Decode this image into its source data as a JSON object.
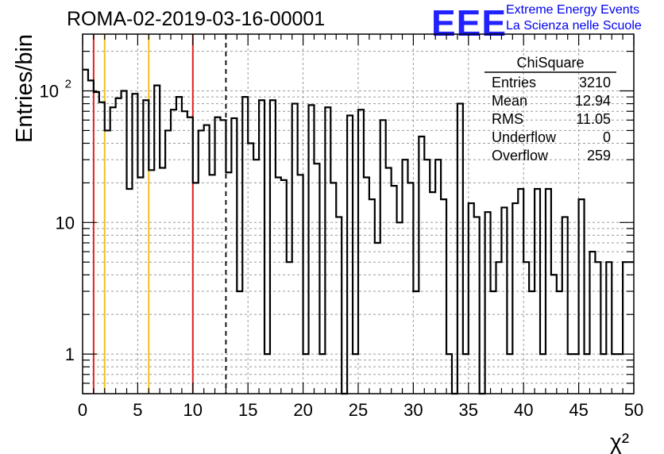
{
  "header": {
    "run_id": "ROMA-02-2019-03-16-00001",
    "logo": "EEE",
    "brand_line1": "Extreme Energy Events",
    "brand_line2": "La Scienza nelle Scuole"
  },
  "stats": {
    "title": "ChiSquare",
    "rows": [
      {
        "label": "Entries",
        "value": "3210"
      },
      {
        "label": "Mean",
        "value": "12.94"
      },
      {
        "label": "RMS",
        "value": "11.05"
      },
      {
        "label": "Underflow",
        "value": "0"
      },
      {
        "label": "Overflow",
        "value": "259"
      }
    ]
  },
  "colors": {
    "histogram": "#000000",
    "grid": "#9a9a9a",
    "red_line": "#e02020",
    "yellow_line": "#f0c020",
    "brand_blue": "#2222ff"
  },
  "chart_data": {
    "type": "histogram",
    "title": "",
    "xlabel": "χ²",
    "ylabel": "Entries/bin",
    "log_y": true,
    "grid": true,
    "xlim": [
      0,
      50
    ],
    "ylim": [
      0.5,
      270
    ],
    "bin_width": 0.5,
    "x_ticks": [
      "0",
      "5",
      "10",
      "15",
      "20",
      "25",
      "30",
      "35",
      "40",
      "45",
      "50"
    ],
    "y_ticks": [
      {
        "value": 1,
        "label": "1"
      },
      {
        "value": 10,
        "label": "10"
      },
      {
        "value": 100,
        "label": "10^2"
      }
    ],
    "bin_contents": [
      145,
      120,
      98,
      82,
      50,
      75,
      88,
      100,
      18,
      95,
      22,
      85,
      25,
      110,
      26,
      50,
      72,
      90,
      70,
      63,
      20,
      50,
      55,
      23,
      63,
      60,
      24,
      62,
      3,
      90,
      40,
      30,
      85,
      1,
      85,
      22,
      21,
      5,
      80,
      23,
      1,
      78,
      28,
      1,
      75,
      20,
      11,
      0.5,
      65,
      1,
      72,
      22,
      15,
      7,
      60,
      26,
      19,
      10,
      30,
      20,
      3,
      45,
      30,
      17,
      30,
      15,
      1,
      0.5,
      80,
      1,
      14,
      11,
      0.5,
      12,
      3,
      5,
      13,
      1,
      14,
      18,
      5,
      3,
      18,
      1,
      18,
      4,
      3,
      11,
      1,
      1,
      15,
      1,
      6,
      5,
      1,
      5,
      1,
      1,
      5,
      5
    ],
    "vertical_lines": [
      {
        "x": 1,
        "color": "#e02020",
        "style": "solid"
      },
      {
        "x": 2,
        "color": "#f0c020",
        "style": "solid"
      },
      {
        "x": 6,
        "color": "#f0c020",
        "style": "solid"
      },
      {
        "x": 10,
        "color": "#e02020",
        "style": "solid"
      },
      {
        "x": 13,
        "color": "#000000",
        "style": "dashed"
      }
    ]
  }
}
